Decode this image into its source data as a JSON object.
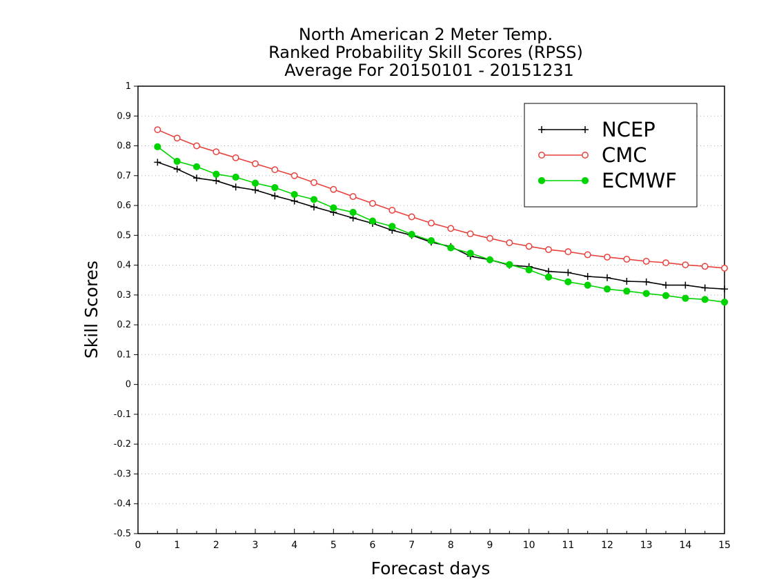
{
  "chart_data": {
    "type": "line",
    "title_lines": [
      "North American 2 Meter Temp.",
      "Ranked Probability Skill Scores (RPSS)",
      "Average For 20150101 - 20151231"
    ],
    "xlabel": "Forecast days",
    "ylabel": "Skill Scores",
    "xlim": [
      0,
      15
    ],
    "ylim": [
      -0.5,
      1
    ],
    "x_ticks": [
      "0",
      "1",
      "2",
      "3",
      "4",
      "5",
      "6",
      "7",
      "8",
      "9",
      "10",
      "11",
      "12",
      "13",
      "14",
      "15"
    ],
    "y_ticks": [
      "1",
      "0.9",
      "0.8",
      "0.7",
      "0.6",
      "0.5",
      "0.4",
      "0.3",
      "0.2",
      "0.1",
      "0",
      "-0.1",
      "-0.2",
      "-0.3",
      "-0.4",
      "-0.5"
    ],
    "grid": "horizontal dotted",
    "legend_placement": "top-right",
    "x": [
      0.5,
      1,
      1.5,
      2,
      2.5,
      3,
      3.5,
      4,
      4.5,
      5,
      5.5,
      6,
      6.5,
      7,
      7.5,
      8,
      8.5,
      9,
      9.5,
      10,
      10.5,
      11,
      11.5,
      12,
      12.5,
      13,
      13.5,
      14,
      14.5,
      15
    ],
    "series": [
      {
        "name": "NCEP",
        "color": "#000000",
        "marker": "plus",
        "values": [
          0.745,
          0.722,
          0.692,
          0.683,
          0.662,
          0.652,
          0.632,
          0.615,
          0.595,
          0.577,
          0.558,
          0.54,
          0.517,
          0.5,
          0.477,
          0.462,
          0.43,
          0.418,
          0.4,
          0.395,
          0.379,
          0.375,
          0.362,
          0.358,
          0.346,
          0.344,
          0.333,
          0.333,
          0.324,
          0.32
        ]
      },
      {
        "name": "CMC",
        "color": "#e8403c",
        "marker": "open-circle",
        "values": [
          0.854,
          0.826,
          0.8,
          0.78,
          0.76,
          0.74,
          0.72,
          0.7,
          0.677,
          0.654,
          0.63,
          0.607,
          0.584,
          0.562,
          0.541,
          0.523,
          0.505,
          0.49,
          0.475,
          0.463,
          0.452,
          0.445,
          0.435,
          0.427,
          0.42,
          0.413,
          0.408,
          0.401,
          0.396,
          0.39
        ]
      },
      {
        "name": "ECMWF",
        "color": "#00d400",
        "marker": "filled-circle",
        "values": [
          0.797,
          0.748,
          0.73,
          0.705,
          0.695,
          0.675,
          0.66,
          0.637,
          0.62,
          0.592,
          0.577,
          0.548,
          0.53,
          0.503,
          0.482,
          0.458,
          0.44,
          0.418,
          0.402,
          0.384,
          0.36,
          0.344,
          0.333,
          0.32,
          0.313,
          0.305,
          0.298,
          0.289,
          0.285,
          0.276
        ]
      }
    ]
  }
}
